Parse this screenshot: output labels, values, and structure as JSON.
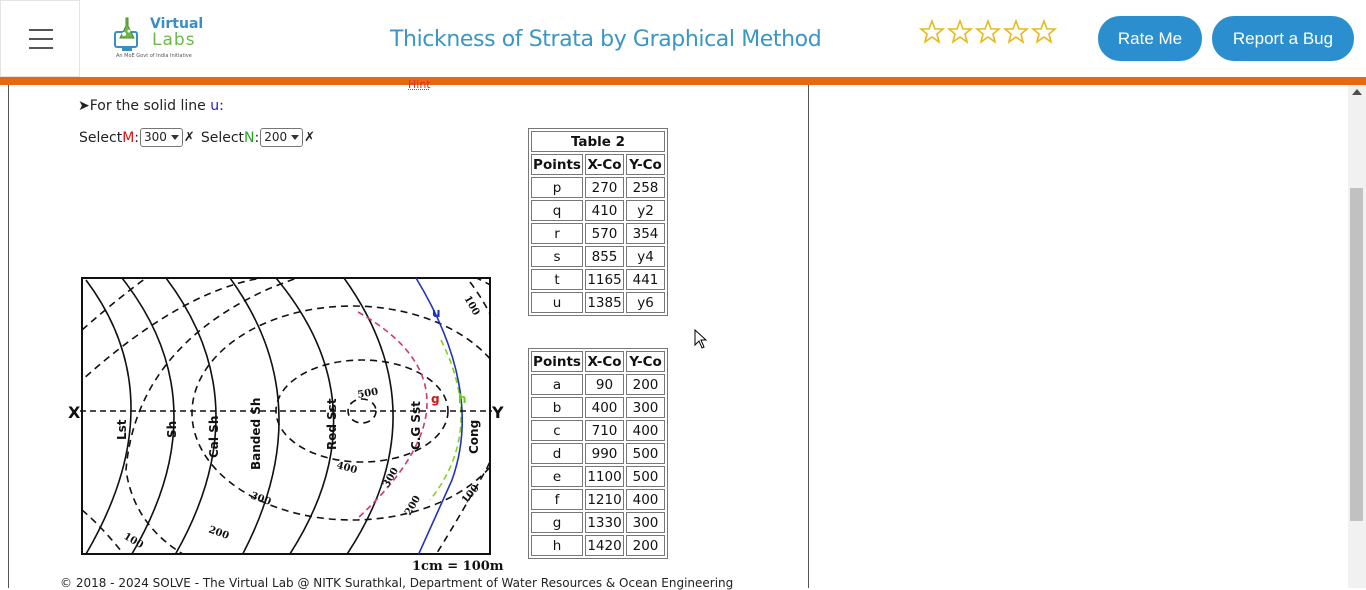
{
  "header": {
    "logo_name": "Virtual",
    "logo_labs": "Labs",
    "logo_tagline": "An MoE Govt of India Initiative",
    "title": "Thickness of Strata by Graphical Method",
    "rate_label": "Rate Me",
    "bug_label": "Report a Bug",
    "star_count": 5,
    "star_icon": "star-outline-icon",
    "accent_color": "#e8690b",
    "brand_color": "#2b8fcf"
  },
  "content": {
    "hint_text": "Hint",
    "solid_line_prefix": "➤For the solid line ",
    "solid_line_letter": "u",
    "solid_line_suffix": ":",
    "select_m_prefix": "Select ",
    "select_m_letter": "M",
    "select_m_value": "300",
    "select_n_prefix": "Select ",
    "select_n_letter": "N",
    "select_n_value": "200",
    "wrong_mark": "✗"
  },
  "table2": {
    "caption": "Table 2",
    "headers": [
      "Points",
      "X-Co",
      "Y-Co"
    ],
    "rows": [
      [
        "p",
        "270",
        "258"
      ],
      [
        "q",
        "410",
        "y2"
      ],
      [
        "r",
        "570",
        "354"
      ],
      [
        "s",
        "855",
        "y4"
      ],
      [
        "t",
        "1165",
        "441"
      ],
      [
        "u",
        "1385",
        "y6"
      ]
    ]
  },
  "table3": {
    "headers": [
      "Points",
      "X-Co",
      "Y-Co"
    ],
    "rows": [
      [
        "a",
        "90",
        "200"
      ],
      [
        "b",
        "400",
        "300"
      ],
      [
        "c",
        "710",
        "400"
      ],
      [
        "d",
        "990",
        "500"
      ],
      [
        "e",
        "1100",
        "500"
      ],
      [
        "f",
        "1210",
        "400"
      ],
      [
        "g",
        "1330",
        "300"
      ],
      [
        "h",
        "1420",
        "200"
      ]
    ]
  },
  "map": {
    "x_label": "X",
    "y_label": "Y",
    "scale": "1cm = 100m",
    "strata": [
      "Lst",
      "Sh",
      "Cal Sh",
      "Banded Sh",
      "Red Sst",
      "C.G Sst",
      "Cong"
    ],
    "contours": [
      "100",
      "200",
      "300",
      "400",
      "500",
      "300",
      "200",
      "100"
    ],
    "point_u": "u",
    "point_g": "g",
    "point_h": "h"
  },
  "footer": {
    "text": "© 2018 - 2024 SOLVE - The Virtual Lab @ NITK Surathkal, Department of Water Resources & Ocean Engineering"
  }
}
